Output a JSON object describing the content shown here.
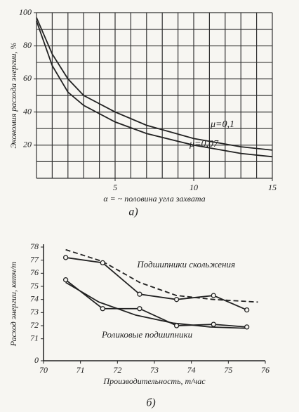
{
  "chart_data": [
    {
      "type": "line",
      "caption": "а)",
      "ylabel": "Экономия расхода энергии, %",
      "xlabel": "α = ~ половина угла захвата",
      "xlim": [
        0,
        15
      ],
      "ylim": [
        0,
        100
      ],
      "xticks": [
        5,
        10,
        15
      ],
      "yticks": [
        20,
        40,
        60,
        80,
        100
      ],
      "grid": true,
      "xgrid": [
        0,
        1,
        2,
        3,
        4,
        5,
        6,
        7,
        8,
        9,
        10,
        11,
        12,
        13,
        14,
        15
      ],
      "ygrid": [
        0,
        10,
        20,
        30,
        40,
        50,
        60,
        70,
        80,
        90,
        100
      ],
      "x": [
        0,
        1,
        2,
        3,
        5,
        7,
        10,
        13,
        15
      ],
      "series": [
        {
          "name": "μ=0,1",
          "color": "#222",
          "values": [
            97,
            75,
            60,
            50,
            40,
            32,
            24,
            19,
            17
          ]
        },
        {
          "name": "μ=0,07",
          "color": "#222",
          "values": [
            95,
            68,
            52,
            44,
            34,
            27,
            20,
            15,
            13
          ]
        }
      ]
    },
    {
      "type": "line",
      "caption": "б)",
      "ylabel": "Расход энергии, квтч/т",
      "xlabel": "Производительность, т/час",
      "xlim": [
        70,
        76
      ],
      "ylim": [
        0,
        78
      ],
      "ybreak": [
        0.5,
        70.5
      ],
      "xticks": [
        70,
        71,
        72,
        73,
        74,
        75,
        76
      ],
      "yticks": [
        0,
        71,
        72,
        73,
        74,
        75,
        76,
        77,
        78
      ],
      "grid": false,
      "annotations": [
        "Подшипники скольжения",
        "Роликовые подшипники"
      ],
      "series": [
        {
          "color": "#222",
          "style": "dashed",
          "x": [
            70.6,
            71.6,
            72.6,
            73.6,
            74.6,
            75.8
          ],
          "values": [
            77.8,
            76.9,
            75.3,
            74.3,
            74.0,
            73.8
          ]
        },
        {
          "color": "#222",
          "markers": true,
          "x": [
            70.6,
            71.6,
            72.6,
            73.6,
            74.6,
            75.5
          ],
          "values": [
            77.2,
            76.8,
            74.4,
            74.0,
            74.3,
            73.2
          ]
        },
        {
          "color": "#222",
          "x": [
            70.6,
            71.5,
            72.5,
            73.5,
            74.5,
            75.5
          ],
          "values": [
            75.3,
            73.8,
            72.8,
            72.2,
            71.9,
            71.8
          ]
        },
        {
          "color": "#222",
          "markers": true,
          "x": [
            70.6,
            71.6,
            72.6,
            73.6,
            74.6,
            75.5
          ],
          "values": [
            75.5,
            73.3,
            73.3,
            72.0,
            72.1,
            71.9
          ]
        }
      ]
    }
  ]
}
